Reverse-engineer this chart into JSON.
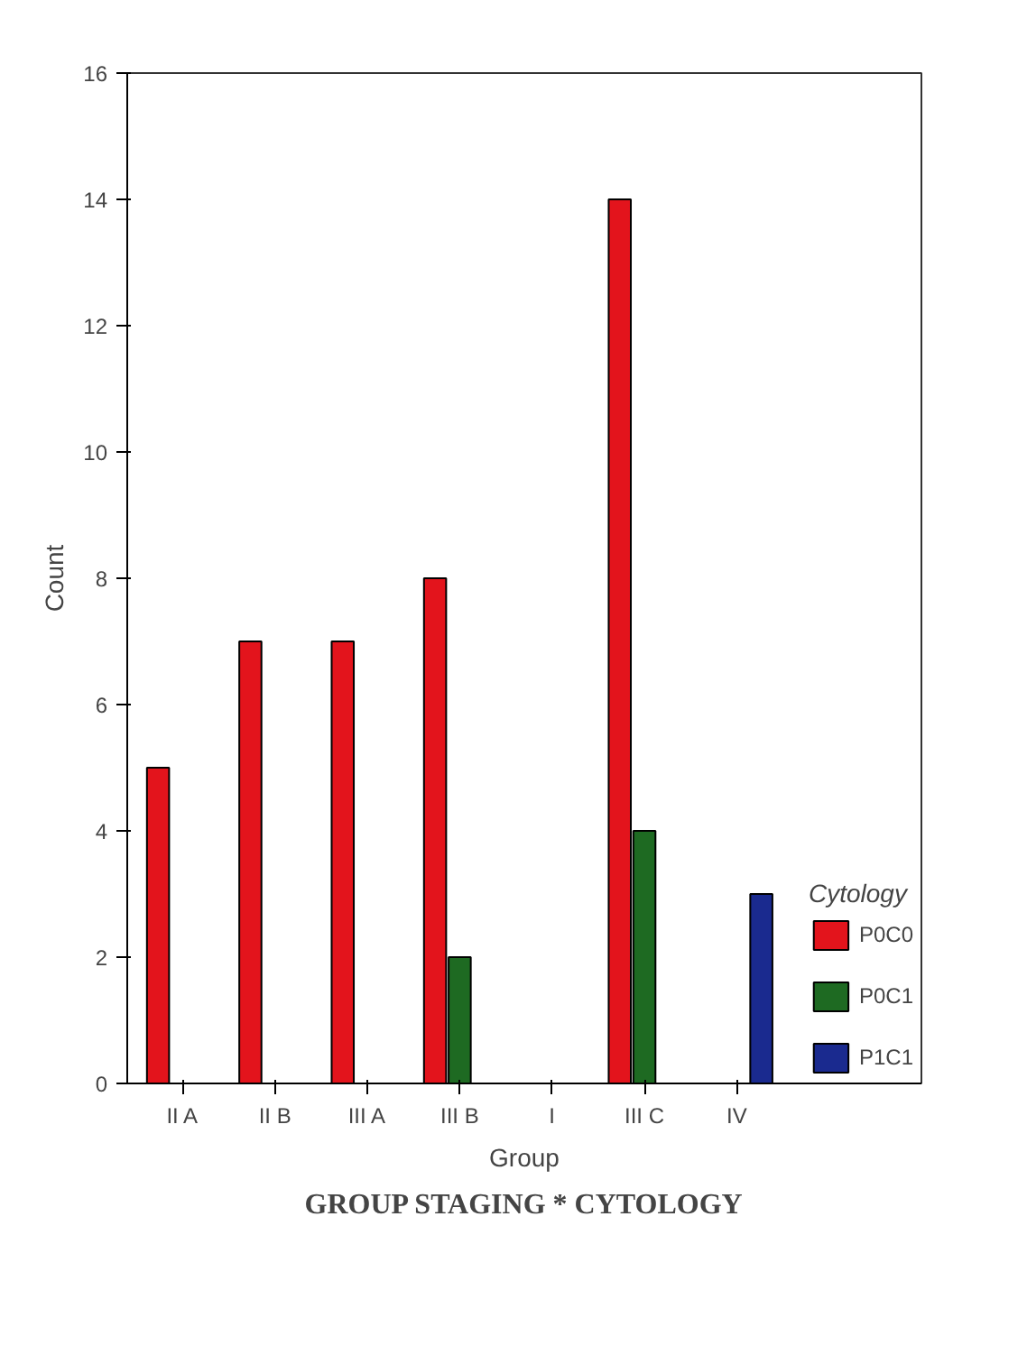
{
  "chart_data": {
    "type": "bar",
    "title": "GROUP STAGING * CYTOLOGY",
    "xlabel": "Group",
    "ylabel": "Count",
    "legend_title": "Cytology",
    "categories": [
      "II A",
      "II B",
      "III A",
      "III B",
      "I",
      "III C",
      "IV"
    ],
    "series": [
      {
        "name": "P0C0",
        "color": "#e3141c",
        "values": [
          5,
          7,
          7,
          8,
          null,
          14,
          null
        ]
      },
      {
        "name": "P0C1",
        "color": "#1e6a22",
        "values": [
          null,
          null,
          null,
          2,
          null,
          4,
          null
        ]
      },
      {
        "name": "P1C1",
        "color": "#1a2a8f",
        "values": [
          null,
          null,
          null,
          null,
          null,
          null,
          3
        ]
      }
    ],
    "ylim": [
      0,
      16
    ],
    "yticks": [
      0,
      2,
      4,
      6,
      8,
      10,
      12,
      14,
      16
    ],
    "grid": false,
    "legend": "right"
  }
}
